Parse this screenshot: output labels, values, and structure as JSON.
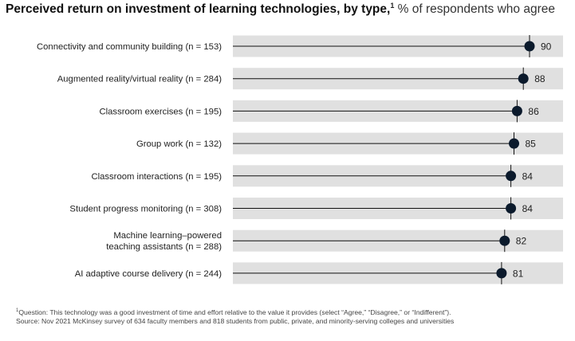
{
  "header": {
    "title": "Perceived return on investment of learning technologies, by type,",
    "title_sup": "1",
    "subtitle": " % of respondents who agree"
  },
  "chart_data": {
    "type": "bar",
    "categories": [
      [
        "Connectivity and community building (n = 153)"
      ],
      [
        "Augmented reality/virtual reality (n = 284)"
      ],
      [
        "Classroom exercises (n = 195)"
      ],
      [
        "Group work (n = 132)"
      ],
      [
        "Classroom interactions (n = 195)"
      ],
      [
        "Student progress monitoring (n = 308)"
      ],
      [
        "Machine learning–powered",
        "teaching assistants (n = 288)"
      ],
      [
        "AI adaptive course delivery (n = 244)"
      ]
    ],
    "values": [
      90,
      88,
      86,
      85,
      84,
      84,
      82,
      81
    ],
    "xlim": [
      0,
      100
    ],
    "grid": false,
    "colors": {
      "band": "#e0e0e0",
      "line": "#111111",
      "dot": "#0b1a2c"
    }
  },
  "footnotes": {
    "line1_sup": "1",
    "line1": "Question: This technology was a good investment of time and effort relative to the value it provides (select “Agree,” “Disagree,” or “Indifferent”).",
    "line2": "Source: Nov 2021 McKinsey survey of 634 faculty members and 818 students from public, private, and minority-serving colleges and universities"
  }
}
